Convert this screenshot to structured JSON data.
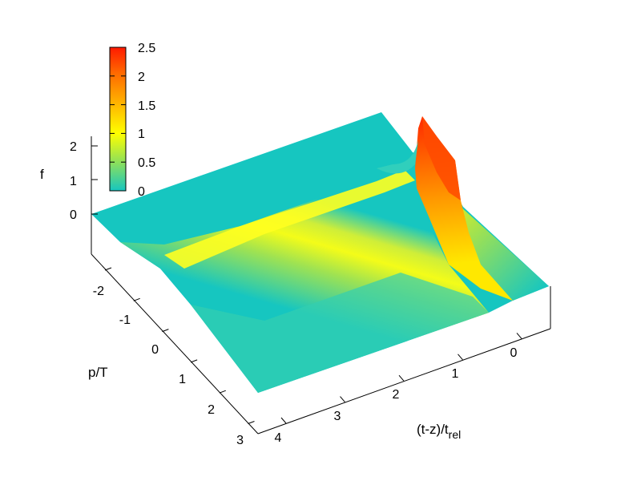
{
  "chart_data": {
    "type": "surface3d",
    "zlabel": "f",
    "xlabel": "(t-z)/t",
    "xlabel_sub": "rel",
    "ylabel": "p/T",
    "x_ticks": [
      "4",
      "3",
      "2",
      "1",
      "0"
    ],
    "y_ticks": [
      "-2",
      "-1",
      "0",
      "1",
      "2",
      "3"
    ],
    "z_ticks": [
      "2",
      "1",
      "0"
    ],
    "colorbar": {
      "ticks": [
        "2.5",
        "2",
        "1.5",
        "1",
        "0.5",
        "0"
      ],
      "range": [
        0,
        2.5
      ],
      "colors": [
        "#16c6c0",
        "#8ee05a",
        "#ffff00",
        "#ffb000",
        "#ff6a00",
        "#ff1a00"
      ]
    },
    "xlim": [
      -0.6,
      4.3
    ],
    "ylim": [
      -2.8,
      3.2
    ],
    "zlim": [
      0,
      2.5
    ],
    "grid": false,
    "surface_profile": [
      {
        "x": 4.3,
        "f_peak": 0.5
      },
      {
        "x": 3.0,
        "f_peak": 0.5
      },
      {
        "x": 2.0,
        "f_peak": 0.55
      },
      {
        "x": 1.0,
        "f_peak": 0.6
      },
      {
        "x": 0.3,
        "f_peak": 1.2
      },
      {
        "x": 0.0,
        "f_peak": 2.3
      },
      {
        "x": -0.3,
        "f_peak": 1.0
      },
      {
        "x": -0.6,
        "f_peak": 0.2
      }
    ]
  }
}
